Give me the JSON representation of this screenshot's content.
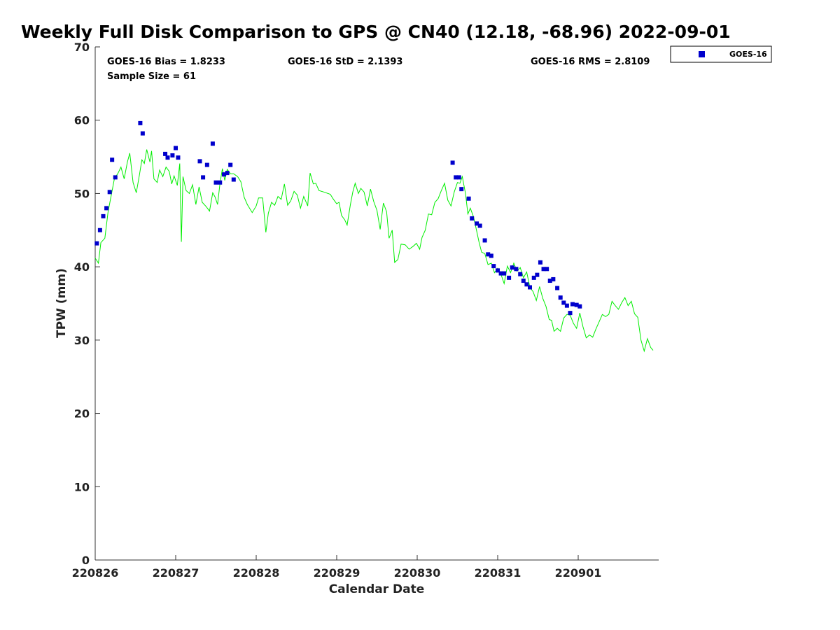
{
  "chart_data": {
    "type": "scatter+line",
    "title": "Weekly Full Disk Comparison to GPS @ CN40 (12.18, -68.96) 2022-09-01",
    "xlabel": "Calendar Date",
    "ylabel": "TPW (mm)",
    "xlim": [
      0,
      7
    ],
    "ylim": [
      0,
      70
    ],
    "x_ticks": [
      {
        "v": 0,
        "label": "220826"
      },
      {
        "v": 1,
        "label": "220827"
      },
      {
        "v": 2,
        "label": "220828"
      },
      {
        "v": 3,
        "label": "220829"
      },
      {
        "v": 4,
        "label": "220830"
      },
      {
        "v": 5,
        "label": "220831"
      },
      {
        "v": 6,
        "label": "220901"
      }
    ],
    "y_ticks": [
      0,
      10,
      20,
      30,
      40,
      50,
      60,
      70
    ],
    "stats": {
      "bias": "GOES-16 Bias = 1.8233",
      "std": "GOES-16 StD = 2.1393",
      "rms": "GOES-16 RMS = 2.8109",
      "sample": "Sample Size = 61"
    },
    "legend": {
      "position": "top-right-outside",
      "label": "GOES-16"
    },
    "colors": {
      "goes": "#0000cc",
      "gps": "#00ee00"
    },
    "series": [
      {
        "name": "GPS",
        "style": "line",
        "points": [
          [
            0.0,
            41.2
          ],
          [
            0.04,
            40.5
          ],
          [
            0.07,
            43.3
          ],
          [
            0.12,
            43.9
          ],
          [
            0.16,
            47.5
          ],
          [
            0.2,
            49.8
          ],
          [
            0.24,
            52.1
          ],
          [
            0.28,
            52.7
          ],
          [
            0.32,
            53.6
          ],
          [
            0.36,
            52.0
          ],
          [
            0.4,
            54.3
          ],
          [
            0.43,
            55.5
          ],
          [
            0.47,
            51.5
          ],
          [
            0.51,
            50.1
          ],
          [
            0.55,
            52.6
          ],
          [
            0.58,
            54.6
          ],
          [
            0.61,
            54.1
          ],
          [
            0.64,
            56.0
          ],
          [
            0.68,
            54.3
          ],
          [
            0.7,
            55.8
          ],
          [
            0.73,
            52.0
          ],
          [
            0.77,
            51.5
          ],
          [
            0.8,
            53.2
          ],
          [
            0.84,
            52.3
          ],
          [
            0.88,
            53.6
          ],
          [
            0.92,
            53.0
          ],
          [
            0.95,
            51.3
          ],
          [
            0.98,
            52.4
          ],
          [
            1.02,
            51.1
          ],
          [
            1.05,
            54.1
          ],
          [
            1.07,
            43.4
          ],
          [
            1.09,
            52.3
          ],
          [
            1.13,
            50.4
          ],
          [
            1.17,
            50.0
          ],
          [
            1.21,
            51.2
          ],
          [
            1.25,
            48.5
          ],
          [
            1.29,
            50.9
          ],
          [
            1.33,
            48.8
          ],
          [
            1.38,
            48.2
          ],
          [
            1.42,
            47.6
          ],
          [
            1.46,
            50.1
          ],
          [
            1.49,
            49.5
          ],
          [
            1.52,
            48.5
          ],
          [
            1.55,
            51.4
          ],
          [
            1.58,
            53.4
          ],
          [
            1.61,
            51.8
          ],
          [
            1.64,
            53.3
          ],
          [
            1.68,
            52.7
          ],
          [
            1.72,
            52.7
          ],
          [
            1.77,
            52.3
          ],
          [
            1.81,
            51.6
          ],
          [
            1.85,
            49.5
          ],
          [
            1.89,
            48.5
          ],
          [
            1.95,
            47.4
          ],
          [
            2.0,
            48.3
          ],
          [
            2.03,
            49.4
          ],
          [
            2.08,
            49.4
          ],
          [
            2.12,
            44.7
          ],
          [
            2.15,
            47.3
          ],
          [
            2.19,
            48.8
          ],
          [
            2.23,
            48.4
          ],
          [
            2.27,
            49.6
          ],
          [
            2.31,
            49.2
          ],
          [
            2.35,
            51.3
          ],
          [
            2.39,
            48.4
          ],
          [
            2.43,
            49.0
          ],
          [
            2.47,
            50.3
          ],
          [
            2.51,
            49.8
          ],
          [
            2.55,
            48.0
          ],
          [
            2.59,
            49.6
          ],
          [
            2.64,
            48.3
          ],
          [
            2.67,
            52.8
          ],
          [
            2.71,
            51.3
          ],
          [
            2.74,
            51.4
          ],
          [
            2.78,
            50.4
          ],
          [
            2.84,
            50.2
          ],
          [
            2.92,
            49.9
          ],
          [
            2.96,
            49.2
          ],
          [
            3.0,
            48.6
          ],
          [
            3.03,
            48.8
          ],
          [
            3.06,
            47.0
          ],
          [
            3.1,
            46.4
          ],
          [
            3.13,
            45.7
          ],
          [
            3.17,
            48.5
          ],
          [
            3.2,
            50.2
          ],
          [
            3.23,
            51.4
          ],
          [
            3.27,
            50.0
          ],
          [
            3.3,
            50.7
          ],
          [
            3.34,
            50.2
          ],
          [
            3.38,
            48.3
          ],
          [
            3.42,
            50.6
          ],
          [
            3.46,
            48.9
          ],
          [
            3.5,
            47.7
          ],
          [
            3.54,
            45.1
          ],
          [
            3.58,
            48.7
          ],
          [
            3.62,
            47.5
          ],
          [
            3.65,
            43.9
          ],
          [
            3.69,
            45.0
          ],
          [
            3.72,
            40.6
          ],
          [
            3.76,
            41.0
          ],
          [
            3.8,
            43.1
          ],
          [
            3.85,
            43.0
          ],
          [
            3.9,
            42.4
          ],
          [
            3.95,
            42.8
          ],
          [
            3.99,
            43.2
          ],
          [
            4.03,
            42.4
          ],
          [
            4.06,
            44.0
          ],
          [
            4.1,
            45.0
          ],
          [
            4.14,
            47.2
          ],
          [
            4.18,
            47.1
          ],
          [
            4.22,
            48.8
          ],
          [
            4.26,
            49.3
          ],
          [
            4.3,
            50.4
          ],
          [
            4.34,
            51.4
          ],
          [
            4.38,
            49.1
          ],
          [
            4.42,
            48.3
          ],
          [
            4.46,
            50.2
          ],
          [
            4.5,
            51.5
          ],
          [
            4.53,
            51.4
          ],
          [
            4.56,
            52.3
          ],
          [
            4.6,
            50.0
          ],
          [
            4.63,
            47.2
          ],
          [
            4.66,
            48.0
          ],
          [
            4.7,
            46.8
          ],
          [
            4.73,
            45.3
          ],
          [
            4.77,
            43.3
          ],
          [
            4.8,
            42.0
          ],
          [
            4.84,
            41.8
          ],
          [
            4.88,
            40.3
          ],
          [
            4.92,
            40.5
          ],
          [
            4.96,
            39.2
          ],
          [
            5.0,
            39.8
          ],
          [
            5.04,
            39.0
          ],
          [
            5.08,
            37.7
          ],
          [
            5.12,
            40.1
          ],
          [
            5.16,
            39.2
          ],
          [
            5.2,
            40.5
          ],
          [
            5.24,
            39.4
          ],
          [
            5.28,
            39.9
          ],
          [
            5.32,
            38.5
          ],
          [
            5.36,
            39.3
          ],
          [
            5.4,
            37.2
          ],
          [
            5.44,
            36.6
          ],
          [
            5.48,
            35.4
          ],
          [
            5.52,
            37.3
          ],
          [
            5.56,
            35.7
          ],
          [
            5.6,
            34.6
          ],
          [
            5.64,
            32.8
          ],
          [
            5.67,
            32.7
          ],
          [
            5.7,
            31.2
          ],
          [
            5.74,
            31.6
          ],
          [
            5.78,
            31.2
          ],
          [
            5.82,
            33.0
          ],
          [
            5.86,
            33.5
          ],
          [
            5.9,
            33.4
          ],
          [
            5.94,
            32.3
          ],
          [
            5.98,
            31.6
          ],
          [
            6.02,
            33.7
          ],
          [
            6.06,
            31.8
          ],
          [
            6.1,
            30.3
          ],
          [
            6.14,
            30.7
          ],
          [
            6.18,
            30.4
          ],
          [
            6.22,
            31.5
          ],
          [
            6.26,
            32.5
          ],
          [
            6.3,
            33.5
          ],
          [
            6.34,
            33.2
          ],
          [
            6.38,
            33.5
          ],
          [
            6.42,
            35.3
          ],
          [
            6.46,
            34.7
          ],
          [
            6.5,
            34.2
          ],
          [
            6.54,
            35.1
          ],
          [
            6.58,
            35.8
          ],
          [
            6.62,
            34.7
          ],
          [
            6.66,
            35.3
          ],
          [
            6.7,
            33.6
          ],
          [
            6.74,
            33.1
          ],
          [
            6.78,
            30.0
          ],
          [
            6.82,
            28.5
          ],
          [
            6.86,
            30.2
          ],
          [
            6.9,
            29.0
          ],
          [
            6.93,
            28.6
          ]
        ]
      },
      {
        "name": "GOES-16",
        "style": "markers",
        "points": [
          [
            0.02,
            43.2
          ],
          [
            0.06,
            45.0
          ],
          [
            0.1,
            46.9
          ],
          [
            0.14,
            48.0
          ],
          [
            0.18,
            50.2
          ],
          [
            0.21,
            54.6
          ],
          [
            0.25,
            52.2
          ],
          [
            0.56,
            59.6
          ],
          [
            0.59,
            58.2
          ],
          [
            0.87,
            55.4
          ],
          [
            0.9,
            54.9
          ],
          [
            0.96,
            55.2
          ],
          [
            1.0,
            56.2
          ],
          [
            1.03,
            54.9
          ],
          [
            1.3,
            54.4
          ],
          [
            1.34,
            52.2
          ],
          [
            1.39,
            53.9
          ],
          [
            1.46,
            56.8
          ],
          [
            1.5,
            51.5
          ],
          [
            1.55,
            51.5
          ],
          [
            1.6,
            52.6
          ],
          [
            1.64,
            52.8
          ],
          [
            1.68,
            53.9
          ],
          [
            1.72,
            51.9
          ],
          [
            4.44,
            54.2
          ],
          [
            4.48,
            52.2
          ],
          [
            4.52,
            52.2
          ],
          [
            4.55,
            50.6
          ],
          [
            4.64,
            49.3
          ],
          [
            4.68,
            46.6
          ],
          [
            4.74,
            45.9
          ],
          [
            4.78,
            45.6
          ],
          [
            4.84,
            43.6
          ],
          [
            4.88,
            41.7
          ],
          [
            4.92,
            41.5
          ],
          [
            4.95,
            40.1
          ],
          [
            5.0,
            39.5
          ],
          [
            5.04,
            39.1
          ],
          [
            5.08,
            39.1
          ],
          [
            5.14,
            38.5
          ],
          [
            5.18,
            39.9
          ],
          [
            5.23,
            39.7
          ],
          [
            5.28,
            39.0
          ],
          [
            5.32,
            38.1
          ],
          [
            5.36,
            37.6
          ],
          [
            5.4,
            37.2
          ],
          [
            5.45,
            38.5
          ],
          [
            5.49,
            38.9
          ],
          [
            5.53,
            40.6
          ],
          [
            5.57,
            39.7
          ],
          [
            5.61,
            39.7
          ],
          [
            5.65,
            38.1
          ],
          [
            5.69,
            38.3
          ],
          [
            5.74,
            37.1
          ],
          [
            5.78,
            35.8
          ],
          [
            5.82,
            35.1
          ],
          [
            5.86,
            34.7
          ],
          [
            5.9,
            33.7
          ],
          [
            5.93,
            34.9
          ],
          [
            5.98,
            34.8
          ],
          [
            6.02,
            34.6
          ]
        ]
      }
    ]
  }
}
